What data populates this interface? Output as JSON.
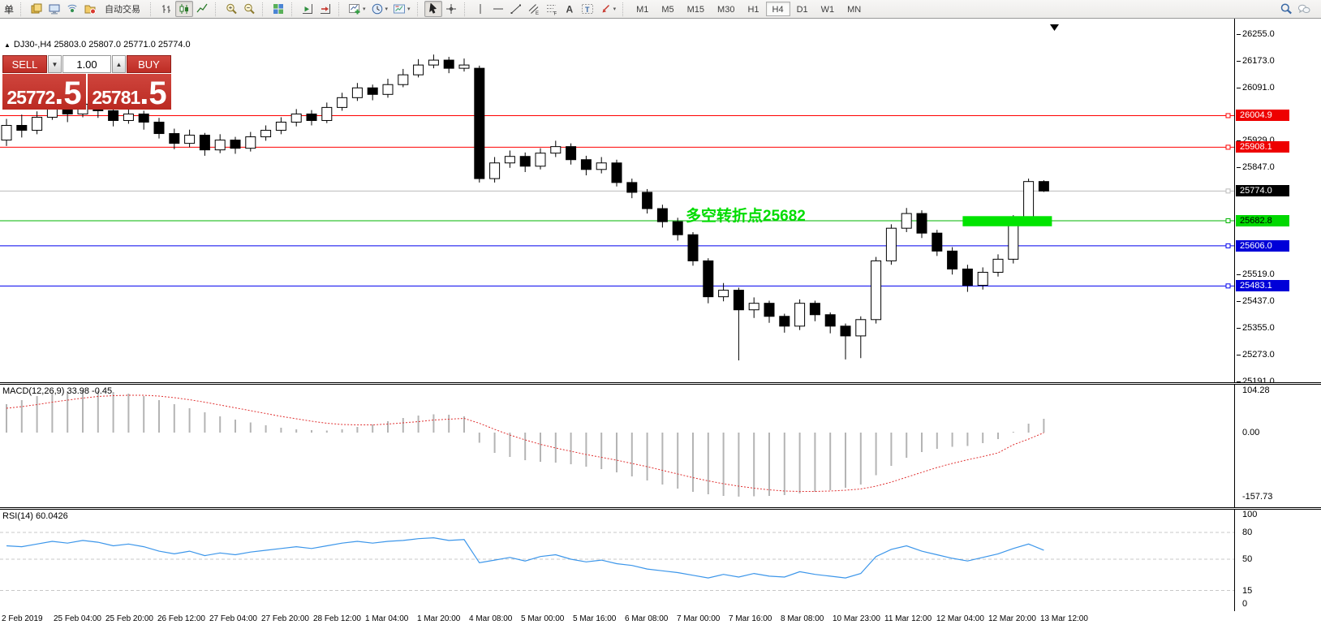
{
  "toolbar": {
    "left_fragment": "单",
    "auto_trading_label": "自动交易",
    "buttons": [
      {
        "name": "book-icon"
      },
      {
        "name": "history-center-icon"
      },
      {
        "name": "signal-icon"
      },
      {
        "name": "market-watch-icon"
      },
      {
        "name": "auto-trading-button"
      },
      {
        "sep": true
      },
      {
        "name": "bar-chart-icon"
      },
      {
        "name": "candlestick-chart-icon",
        "pressed": true
      },
      {
        "name": "line-chart-icon"
      },
      {
        "sep": true
      },
      {
        "name": "zoom-in-icon"
      },
      {
        "name": "zoom-out-icon"
      },
      {
        "sep": true
      },
      {
        "name": "tile-windows-icon"
      },
      {
        "sep": true
      },
      {
        "name": "auto-scroll-icon"
      },
      {
        "name": "chart-shift-icon"
      },
      {
        "sep": true
      },
      {
        "name": "new-indicator-icon",
        "dropdown": true
      },
      {
        "name": "periods-icon",
        "dropdown": true
      },
      {
        "name": "template-icon",
        "dropdown": true
      },
      {
        "sep": true
      },
      {
        "name": "cursor-icon",
        "pressed": true
      },
      {
        "name": "crosshair-icon"
      },
      {
        "sep": true
      },
      {
        "name": "vertical-line-icon"
      },
      {
        "name": "horizontal-line-icon"
      },
      {
        "name": "trendline-icon"
      },
      {
        "name": "channel-icon"
      },
      {
        "name": "fibonacci-icon"
      },
      {
        "name": "text-icon"
      },
      {
        "name": "text-label-icon"
      },
      {
        "name": "arrows-icon",
        "dropdown": true
      },
      {
        "sep": true
      }
    ],
    "timeframes": [
      {
        "label": "M1",
        "active": false
      },
      {
        "label": "M5",
        "active": false
      },
      {
        "label": "M15",
        "active": false
      },
      {
        "label": "M30",
        "active": false
      },
      {
        "label": "H1",
        "active": false
      },
      {
        "label": "H4",
        "active": true
      },
      {
        "label": "D1",
        "active": false
      },
      {
        "label": "W1",
        "active": false
      },
      {
        "label": "MN",
        "active": false
      }
    ],
    "right_icons": [
      "search-icon",
      "chat-icon"
    ]
  },
  "trade_panel": {
    "sell_label": "SELL",
    "buy_label": "BUY",
    "volume": "1.00",
    "sell_price_main": "25772",
    "sell_price_pips": ".5",
    "buy_price_main": "25781",
    "buy_price_pips": ".5"
  },
  "chart": {
    "title": "DJ30-,H4  25803.0 25807.0 25771.0 25774.0",
    "symbol": "DJ30-",
    "period": "H4",
    "ohlc": {
      "open": "25803.0",
      "high": "25807.0",
      "low": "25771.0",
      "close": "25774.0"
    },
    "annotation": {
      "text": "多空转折点25682",
      "color": "#00dc00"
    },
    "levels": [
      {
        "label": "26004.9",
        "price": 26004.9,
        "line_color": "#ff0000",
        "tag_bg": "#ee0000",
        "tag_fg": "#ffffff",
        "name": "resistance-level-1"
      },
      {
        "label": "25908.1",
        "price": 25908.1,
        "line_color": "#ff0000",
        "tag_bg": "#ee0000",
        "tag_fg": "#ffffff",
        "name": "resistance-level-2"
      },
      {
        "label": "25774.0",
        "price": 25774.0,
        "line_color": "#bbbbbb",
        "tag_bg": "#000000",
        "tag_fg": "#ffffff",
        "name": "current-price-level"
      },
      {
        "label": "25682.8",
        "price": 25682.8,
        "line_color": "#00b400",
        "tag_bg": "#00d800",
        "tag_fg": "#000000",
        "name": "pivot-level"
      },
      {
        "label": "25606.0",
        "price": 25606.0,
        "line_color": "#0000ee",
        "tag_bg": "#0000d8",
        "tag_fg": "#ffffff",
        "name": "support-level-1"
      },
      {
        "label": "25483.1",
        "price": 25483.1,
        "line_color": "#0000ee",
        "tag_bg": "#0000d8",
        "tag_fg": "#ffffff",
        "name": "support-level-2"
      }
    ],
    "axis_ticks": [
      "26255.0",
      "26173.0",
      "26091.0",
      "25929.0",
      "25847.0",
      "25765.0",
      "25683.0",
      "25601.0",
      "25519.0",
      "25437.0",
      "25355.0",
      "25273.0",
      "25191.0"
    ],
    "highlight_zone": {
      "price_top": 25697,
      "price_bottom": 25666,
      "color": "#00e400"
    }
  },
  "chart_data": {
    "type": "candlestick",
    "symbol": "DJ30-",
    "timeframe": "H4",
    "ylim": [
      25188,
      26302
    ],
    "candles": [
      [
        25930,
        25995,
        25912,
        25975
      ],
      [
        25975,
        26008,
        25938,
        25960
      ],
      [
        25960,
        26018,
        25948,
        26000
      ],
      [
        26000,
        26062,
        25992,
        26030
      ],
      [
        26030,
        26048,
        25985,
        26010
      ],
      [
        26010,
        26075,
        26000,
        26040
      ],
      [
        26040,
        26058,
        25998,
        26020
      ],
      [
        26020,
        26035,
        25972,
        25990
      ],
      [
        25990,
        26028,
        25980,
        26010
      ],
      [
        26010,
        26020,
        25962,
        25985
      ],
      [
        25985,
        25998,
        25935,
        25950
      ],
      [
        25950,
        25965,
        25902,
        25920
      ],
      [
        25920,
        25962,
        25908,
        25945
      ],
      [
        25945,
        25952,
        25882,
        25900
      ],
      [
        25900,
        25948,
        25890,
        25930
      ],
      [
        25930,
        25940,
        25888,
        25905
      ],
      [
        25905,
        25955,
        25895,
        25940
      ],
      [
        25940,
        25975,
        25928,
        25960
      ],
      [
        25960,
        26000,
        25948,
        25985
      ],
      [
        25985,
        26025,
        25972,
        26010
      ],
      [
        26010,
        26022,
        25975,
        25990
      ],
      [
        25990,
        26045,
        25982,
        26030
      ],
      [
        26030,
        26075,
        26020,
        26060
      ],
      [
        26060,
        26105,
        26050,
        26090
      ],
      [
        26090,
        26100,
        26052,
        26070
      ],
      [
        26070,
        26118,
        26060,
        26100
      ],
      [
        26100,
        26148,
        26092,
        26130
      ],
      [
        26130,
        26178,
        26122,
        26160
      ],
      [
        26160,
        26192,
        26150,
        26175
      ],
      [
        26175,
        26185,
        26135,
        26150
      ],
      [
        26150,
        26180,
        26140,
        26160
      ],
      [
        26150,
        26158,
        25800,
        25812
      ],
      [
        25812,
        25878,
        25800,
        25860
      ],
      [
        25860,
        25898,
        25845,
        25880
      ],
      [
        25880,
        25892,
        25832,
        25850
      ],
      [
        25850,
        25905,
        25840,
        25890
      ],
      [
        25890,
        25928,
        25878,
        25910
      ],
      [
        25910,
        25920,
        25855,
        25870
      ],
      [
        25870,
        25882,
        25822,
        25840
      ],
      [
        25840,
        25878,
        25828,
        25860
      ],
      [
        25860,
        25870,
        25788,
        25800
      ],
      [
        25800,
        25812,
        25752,
        25770
      ],
      [
        25770,
        25780,
        25705,
        25720
      ],
      [
        25720,
        25732,
        25662,
        25680
      ],
      [
        25680,
        25692,
        25622,
        25640
      ],
      [
        25640,
        25648,
        25545,
        25560
      ],
      [
        25560,
        25568,
        25430,
        25450
      ],
      [
        25450,
        25492,
        25436,
        25470
      ],
      [
        25470,
        25478,
        25255,
        25410
      ],
      [
        25410,
        25448,
        25385,
        25430
      ],
      [
        25430,
        25438,
        25370,
        25390
      ],
      [
        25390,
        25398,
        25340,
        25360
      ],
      [
        25360,
        25442,
        25348,
        25430
      ],
      [
        25430,
        25438,
        25375,
        25395
      ],
      [
        25395,
        25402,
        25338,
        25360
      ],
      [
        25360,
        25368,
        25258,
        25330
      ],
      [
        25330,
        25390,
        25262,
        25380
      ],
      [
        25380,
        25572,
        25368,
        25560
      ],
      [
        25560,
        25672,
        25548,
        25660
      ],
      [
        25660,
        25722,
        25648,
        25705
      ],
      [
        25705,
        25715,
        25630,
        25645
      ],
      [
        25645,
        25655,
        25575,
        25590
      ],
      [
        25590,
        25602,
        25518,
        25535
      ],
      [
        25535,
        25548,
        25465,
        25485
      ],
      [
        25485,
        25540,
        25472,
        25525
      ],
      [
        25525,
        25580,
        25512,
        25565
      ],
      [
        25565,
        25700,
        25552,
        25685
      ],
      [
        25685,
        25812,
        25672,
        25803
      ],
      [
        25803,
        25807,
        25771,
        25774
      ]
    ],
    "macd": {
      "hist": [
        70,
        80,
        90,
        98,
        102,
        104,
        103,
        100,
        96,
        90,
        80,
        70,
        60,
        50,
        40,
        32,
        25,
        18,
        12,
        8,
        6,
        5,
        8,
        14,
        20,
        28,
        36,
        42,
        45,
        44,
        40,
        -25,
        -50,
        -60,
        -68,
        -72,
        -74,
        -78,
        -84,
        -90,
        -98,
        -108,
        -118,
        -128,
        -138,
        -146,
        -152,
        -156,
        -157.7,
        -157,
        -156,
        -154,
        -150,
        -146,
        -142,
        -136,
        -128,
        -105,
        -82,
        -62,
        -48,
        -40,
        -35,
        -33,
        -26,
        -16,
        2,
        22,
        33.98
      ],
      "signal": [
        60,
        64,
        69,
        75,
        80,
        85,
        89,
        91,
        92,
        92,
        90,
        86,
        81,
        75,
        68,
        61,
        54,
        47,
        40,
        34,
        28,
        23,
        20,
        19,
        19,
        21,
        24,
        27,
        31,
        33,
        35,
        23,
        8,
        -6,
        -18,
        -29,
        -38,
        -46,
        -54,
        -61,
        -68,
        -76,
        -84,
        -93,
        -102,
        -111,
        -119,
        -126,
        -132,
        -137,
        -141,
        -144,
        -145,
        -145,
        -144,
        -142,
        -139,
        -132,
        -122,
        -110,
        -98,
        -86,
        -76,
        -67,
        -59,
        -50,
        -30,
        -16,
        -0.45
      ]
    },
    "rsi": [
      65,
      64,
      67,
      70,
      68,
      71,
      69,
      65,
      67,
      64,
      59,
      56,
      59,
      54,
      57,
      55,
      58,
      60,
      62,
      64,
      62,
      65,
      68,
      70,
      68,
      70,
      71,
      73,
      74,
      71,
      72,
      46,
      49,
      52,
      48,
      53,
      55,
      50,
      47,
      49,
      45,
      43,
      39,
      37,
      35,
      32,
      29,
      33,
      30,
      34,
      31,
      30,
      36,
      33,
      31,
      29,
      34,
      53,
      61,
      65,
      59,
      55,
      51,
      48,
      52,
      56,
      62,
      67,
      60.0426
    ]
  },
  "macd_panel": {
    "label": "MACD(12,26,9) 33.98 -0.45",
    "scale": [
      {
        "text": "104.28",
        "value": 104.28
      },
      {
        "text": "0.00",
        "value": 0
      },
      {
        "text": "-157.73",
        "value": -157.73
      }
    ]
  },
  "rsi_panel": {
    "label": "RSI(14) 60.0426",
    "scale": [
      {
        "text": "100",
        "value": 100
      },
      {
        "text": "80",
        "value": 80
      },
      {
        "text": "50",
        "value": 50
      },
      {
        "text": "15",
        "value": 15
      },
      {
        "text": "0",
        "value": 0
      }
    ],
    "level_lines": [
      80,
      50,
      15
    ]
  },
  "time_axis": {
    "labels": [
      "2 Feb 2019",
      "25 Feb 04:00",
      "25 Feb 20:00",
      "26 Feb 12:00",
      "27 Feb 04:00",
      "27 Feb 20:00",
      "28 Feb 12:00",
      "1 Mar 04:00",
      "1 Mar 20:00",
      "4 Mar 08:00",
      "5 Mar 00:00",
      "5 Mar 16:00",
      "6 Mar 08:00",
      "7 Mar 00:00",
      "7 Mar 16:00",
      "8 Mar 08:00",
      "10 Mar 23:00",
      "11 Mar 12:00",
      "12 Mar 04:00",
      "12 Mar 20:00",
      "13 Mar 12:00"
    ]
  }
}
